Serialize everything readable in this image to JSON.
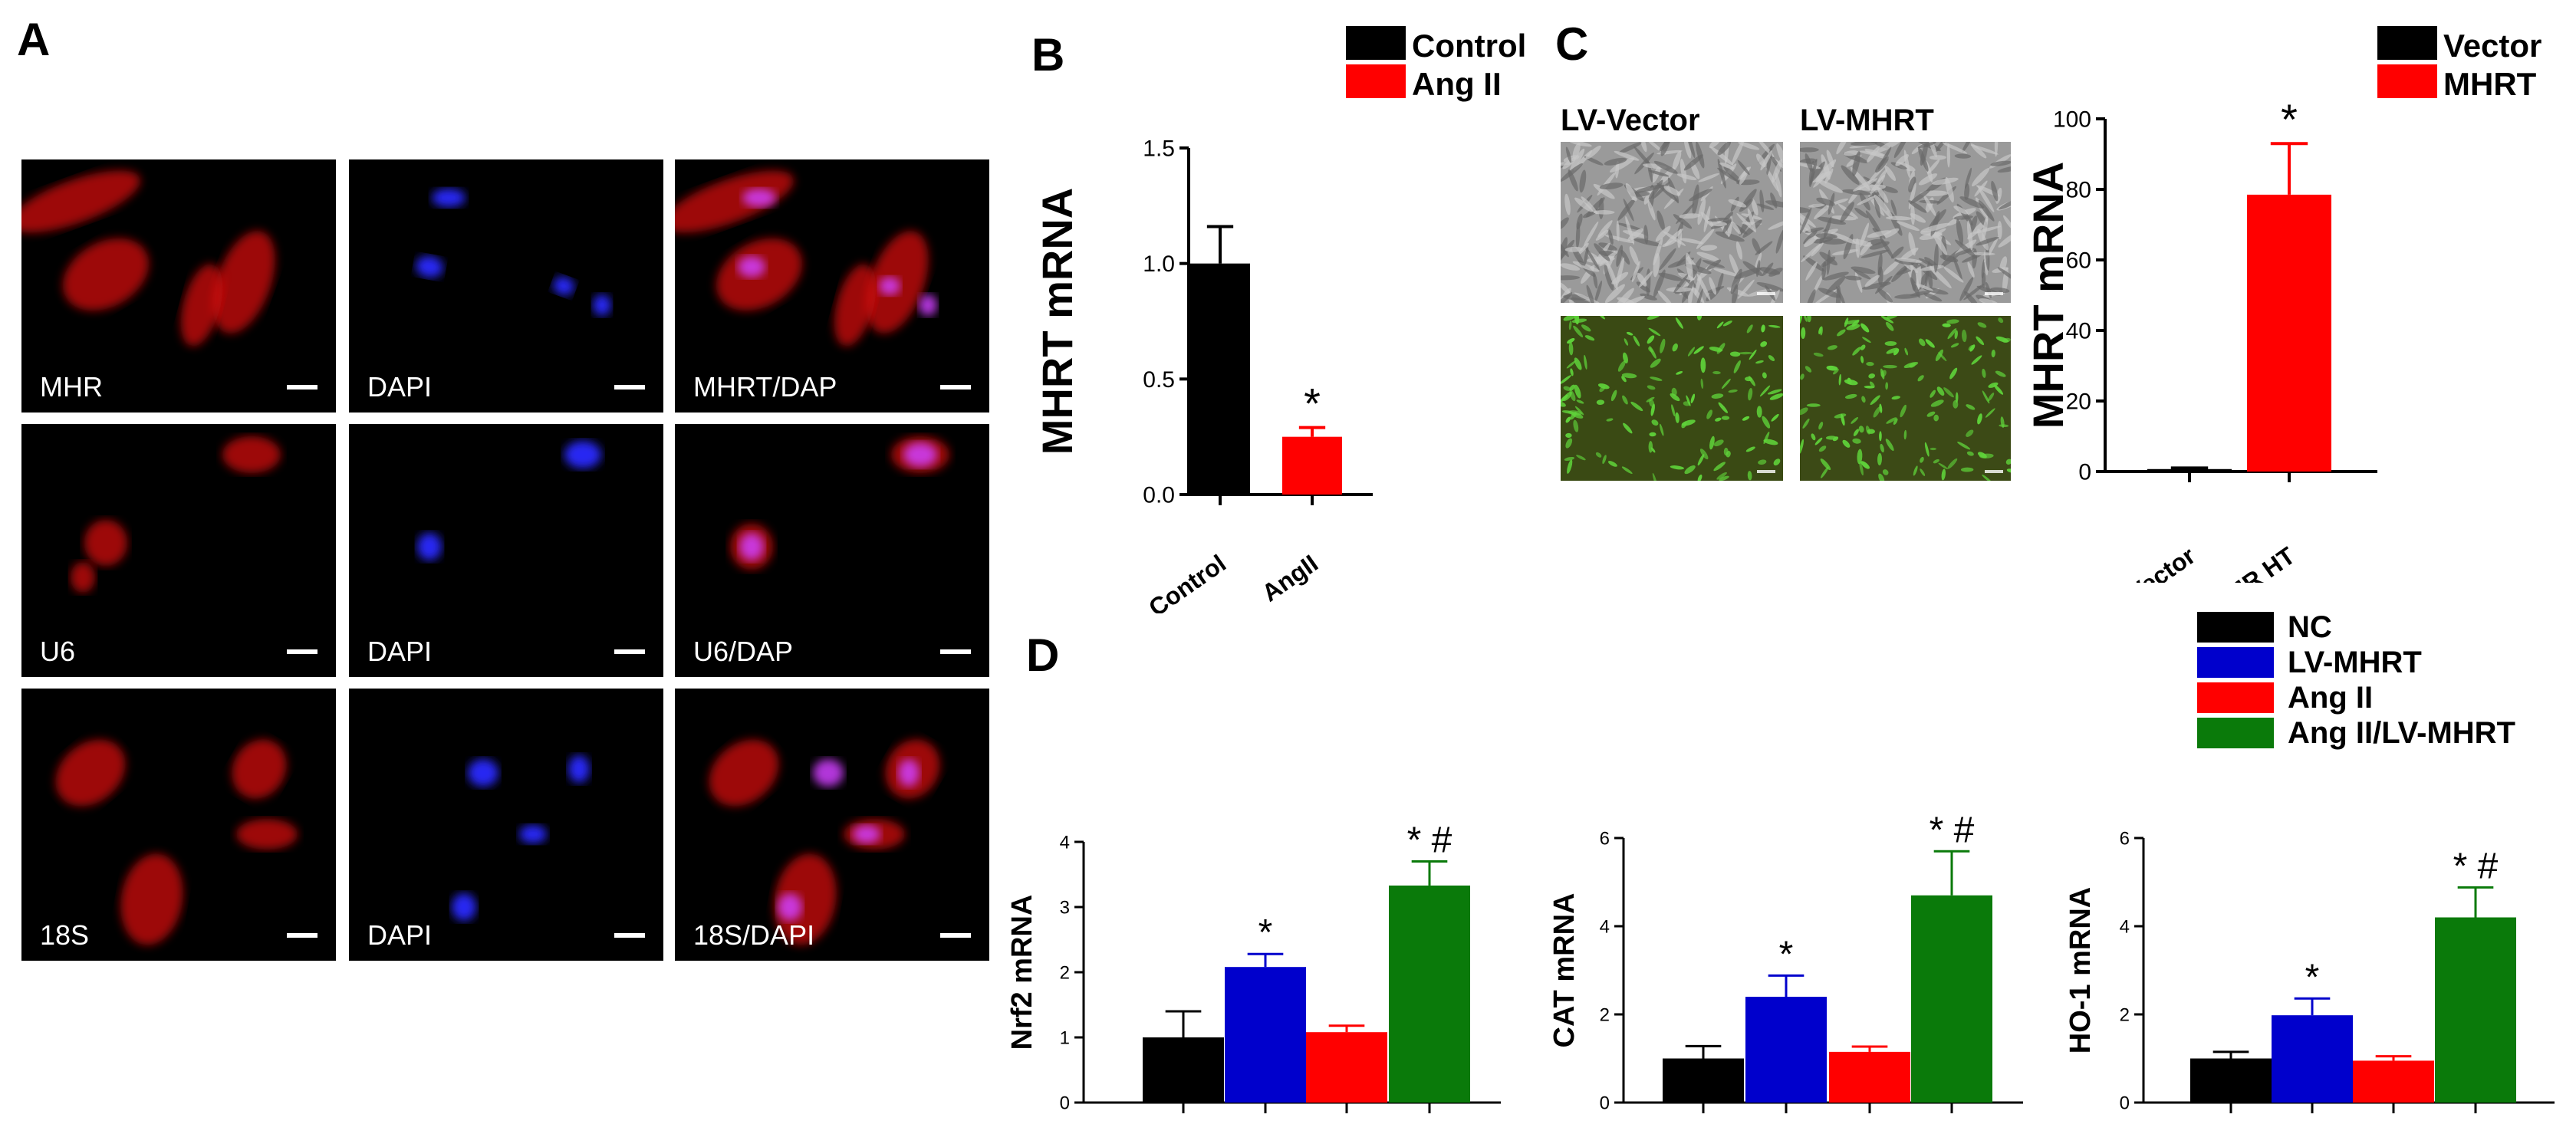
{
  "panels": {
    "A": {
      "label": "A",
      "tiles": [
        [
          "MHR",
          "DAPI",
          "MHRT/DAP"
        ],
        [
          "U6",
          "DAPI",
          "U6/DAP"
        ],
        [
          "18S",
          "DAPI",
          "18S/DAPI"
        ]
      ]
    },
    "B": {
      "label": "B"
    },
    "C": {
      "label": "C",
      "col_labels": [
        "LV-Vector",
        "LV-MHRT"
      ]
    },
    "D": {
      "label": "D"
    }
  },
  "colors": {
    "black": "#000000",
    "red": "#ff0000",
    "blue": "#0000cc",
    "green": "#0a7a0a"
  },
  "chart_data": [
    {
      "id": "B",
      "type": "bar",
      "categories": [
        "Control",
        "AngII"
      ],
      "values": [
        1.0,
        0.25
      ],
      "errors": [
        0.16,
        0.04
      ],
      "colors": [
        "#000000",
        "#ff0000"
      ],
      "annotations": [
        "",
        "*"
      ],
      "ylabel": "MHRT mRNA",
      "ylim": [
        0,
        1.5
      ],
      "yticks": [
        "0.0",
        "0.5",
        "1.0",
        "1.5"
      ],
      "legend": [
        {
          "name": "Control",
          "color": "#000000"
        },
        {
          "name": "Ang II",
          "color": "#ff0000"
        }
      ],
      "legend_position": "top-right"
    },
    {
      "id": "C",
      "type": "bar",
      "categories": [
        "Vector",
        "MR HT"
      ],
      "values": [
        0.7,
        78.5
      ],
      "errors": [
        0.3,
        14.5
      ],
      "colors": [
        "#000000",
        "#ff0000"
      ],
      "annotations": [
        "",
        "*"
      ],
      "ylabel": "MHRT mRNA",
      "ylim": [
        0,
        100
      ],
      "yticks": [
        "0",
        "20",
        "40",
        "60",
        "80",
        "100"
      ],
      "legend": [
        {
          "name": "Vector",
          "color": "#000000"
        },
        {
          "name": "MHRT",
          "color": "#ff0000"
        }
      ],
      "legend_position": "top-right"
    },
    {
      "id": "D1",
      "type": "bar",
      "categories": [
        "NC",
        "LV-MHRT",
        "Ang II",
        "Ang II/LV-MHRT"
      ],
      "values": [
        1.0,
        2.08,
        1.08,
        3.33
      ],
      "errors": [
        0.4,
        0.2,
        0.1,
        0.37
      ],
      "colors": [
        "#000000",
        "#0000cc",
        "#ff0000",
        "#0a7a0a"
      ],
      "annotations": [
        "",
        "*",
        "",
        "* #"
      ],
      "ylabel": "Nrf2 mRNA",
      "ylim": [
        0,
        4
      ],
      "yticks": [
        "0",
        "1",
        "2",
        "3",
        "4"
      ]
    },
    {
      "id": "D2",
      "type": "bar",
      "categories": [
        "NC",
        "LV-MHRT",
        "Ang II",
        "Ang II/LV-MHRT"
      ],
      "values": [
        1.0,
        2.4,
        1.15,
        4.7
      ],
      "errors": [
        0.28,
        0.48,
        0.12,
        1.0
      ],
      "colors": [
        "#000000",
        "#0000cc",
        "#ff0000",
        "#0a7a0a"
      ],
      "annotations": [
        "",
        "*",
        "",
        "* #"
      ],
      "ylabel": "CAT mRNA",
      "ylim": [
        0,
        6
      ],
      "yticks": [
        "0",
        "2",
        "4",
        "6"
      ]
    },
    {
      "id": "D3",
      "type": "bar",
      "categories": [
        "NC",
        "LV-MHRT",
        "Ang II",
        "Ang II/LV-MHRT"
      ],
      "values": [
        1.0,
        1.98,
        0.95,
        4.2
      ],
      "errors": [
        0.15,
        0.38,
        0.1,
        0.68
      ],
      "colors": [
        "#000000",
        "#0000cc",
        "#ff0000",
        "#0a7a0a"
      ],
      "annotations": [
        "",
        "*",
        "",
        "* #"
      ],
      "ylabel": "HO-1 mRNA",
      "ylim": [
        0,
        6
      ],
      "yticks": [
        "0",
        "2",
        "4",
        "6"
      ],
      "legend": [
        {
          "name": "NC",
          "color": "#000000"
        },
        {
          "name": "LV-MHRT",
          "color": "#0000cc"
        },
        {
          "name": "Ang II",
          "color": "#ff0000"
        },
        {
          "name": "Ang II/LV-MHRT",
          "color": "#0a7a0a"
        }
      ]
    }
  ]
}
